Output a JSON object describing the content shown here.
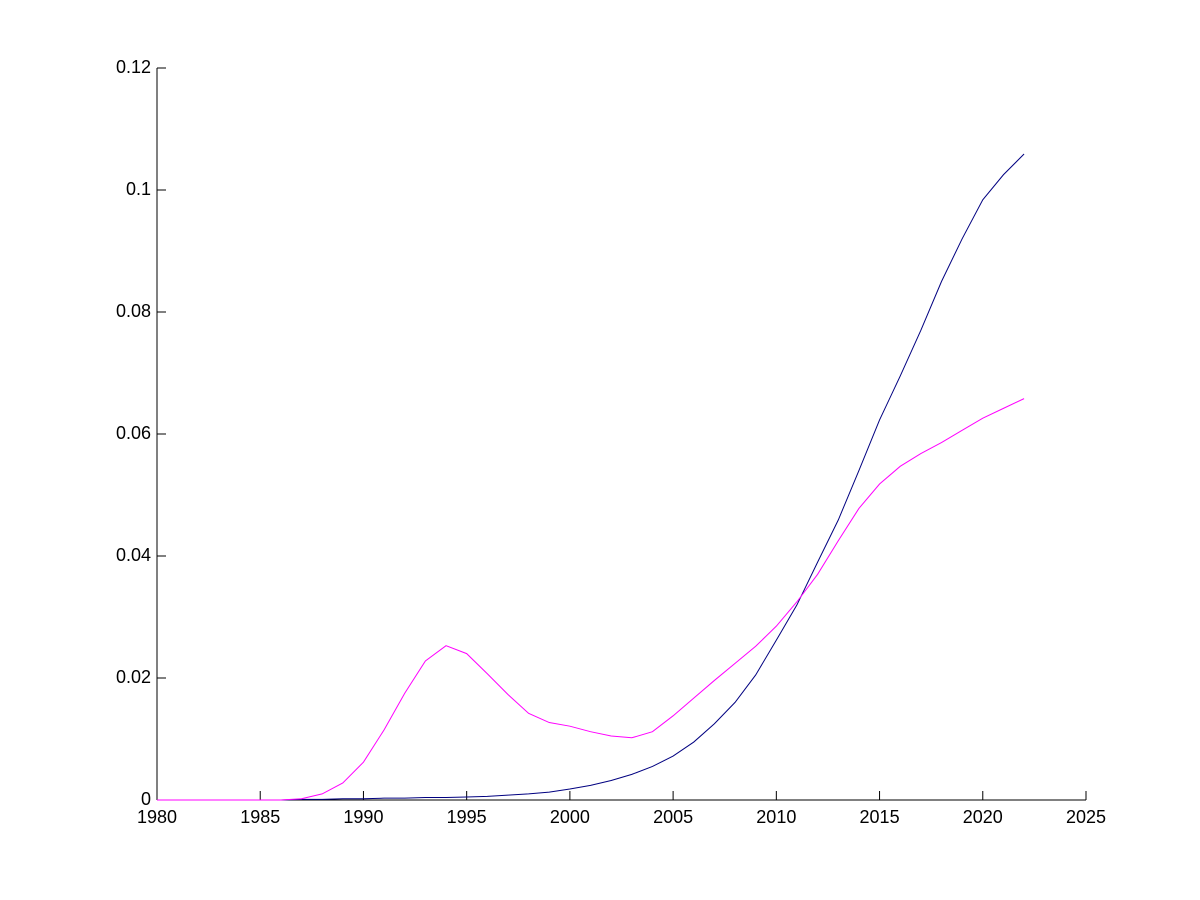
{
  "chart_data": {
    "type": "line",
    "x": [
      1980,
      1981,
      1982,
      1983,
      1984,
      1985,
      1986,
      1987,
      1988,
      1989,
      1990,
      1991,
      1992,
      1993,
      1994,
      1995,
      1996,
      1997,
      1998,
      1999,
      2000,
      2001,
      2002,
      2003,
      2004,
      2005,
      2006,
      2007,
      2008,
      2009,
      2010,
      2011,
      2012,
      2013,
      2014,
      2015,
      2016,
      2017,
      2018,
      2019,
      2020,
      2021,
      2022
    ],
    "series": [
      {
        "color": "#000080",
        "values": [
          0,
          0,
          0,
          0,
          0,
          0,
          0,
          0.0001,
          0.0001,
          0.0002,
          0.0002,
          0.0003,
          0.0003,
          0.0004,
          0.0004,
          0.0005,
          0.0006,
          0.0008,
          0.001,
          0.0013,
          0.0018,
          0.0024,
          0.0032,
          0.0042,
          0.0055,
          0.0072,
          0.0095,
          0.0125,
          0.016,
          0.0205,
          0.0262,
          0.032,
          0.039,
          0.0459,
          0.054,
          0.0623,
          0.0695,
          0.077,
          0.085,
          0.092,
          0.0984,
          0.1025,
          0.1059
        ]
      },
      {
        "color": "#ff00ff",
        "values": [
          0,
          0,
          0,
          0,
          0,
          0,
          0,
          0.0002,
          0.001,
          0.0028,
          0.0062,
          0.0115,
          0.0175,
          0.0228,
          0.0253,
          0.024,
          0.0207,
          0.0173,
          0.0142,
          0.0127,
          0.0121,
          0.0112,
          0.0105,
          0.0102,
          0.0112,
          0.0138,
          0.0167,
          0.0196,
          0.0224,
          0.0252,
          0.0285,
          0.0325,
          0.037,
          0.0425,
          0.0478,
          0.0518,
          0.0547,
          0.0568,
          0.0586,
          0.0606,
          0.0626,
          0.0642,
          0.0658
        ]
      }
    ],
    "xlim": [
      1980,
      2025
    ],
    "xticks": [
      1980,
      1985,
      1990,
      1995,
      2000,
      2005,
      2010,
      2015,
      2020,
      2025
    ],
    "ylim": [
      0,
      0.12
    ],
    "yticks": [
      0,
      0.02,
      0.04,
      0.06,
      0.08,
      0.1,
      0.12
    ]
  }
}
